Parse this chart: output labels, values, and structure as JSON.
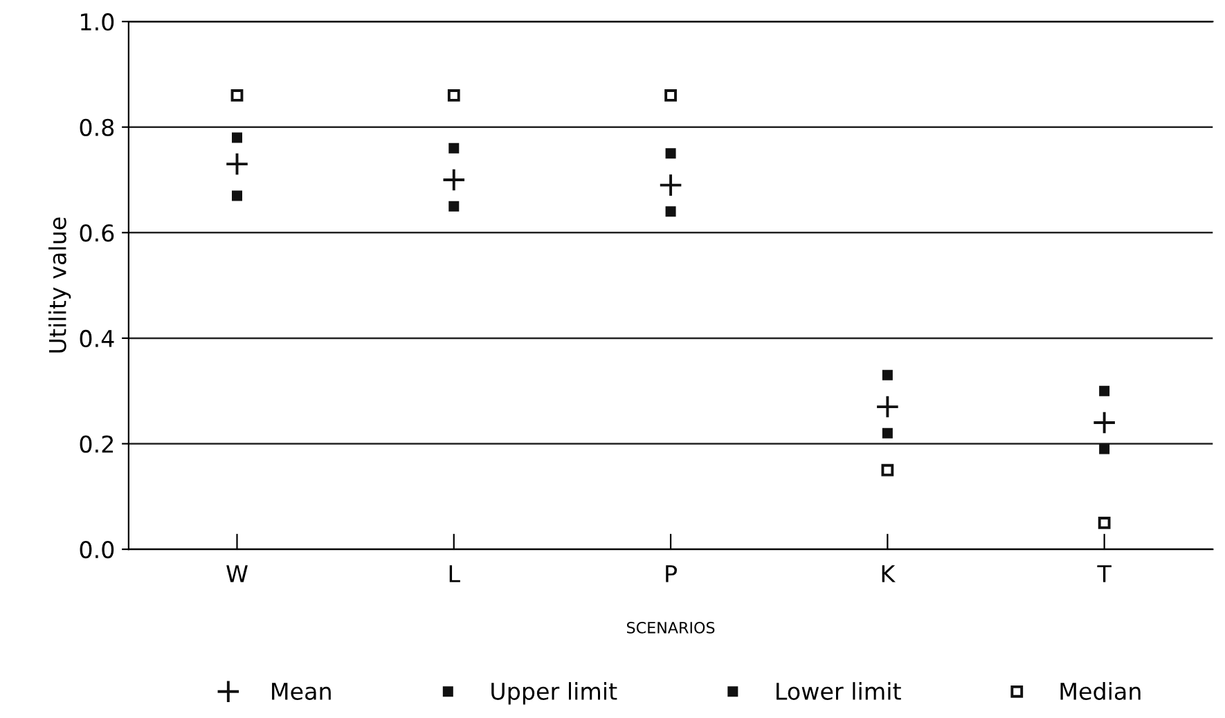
{
  "chart_data": {
    "type": "scatter",
    "ylabel": "Utility value",
    "xlabel": "SCENARIOS",
    "categories": [
      "W",
      "L",
      "P",
      "K",
      "T"
    ],
    "series": [
      {
        "name": "Mean",
        "color": "#111111",
        "marker": "cross",
        "values": [
          0.73,
          0.7,
          0.69,
          0.27,
          0.24
        ]
      },
      {
        "name": "Upper limit",
        "color": "#111111",
        "marker": "square",
        "values": [
          0.78,
          0.76,
          0.75,
          0.33,
          0.3
        ]
      },
      {
        "name": "Lower limit",
        "color": "#111111",
        "marker": "square",
        "values": [
          0.67,
          0.65,
          0.64,
          0.22,
          0.19
        ]
      },
      {
        "name": "Median",
        "color": "#111111",
        "marker": "square",
        "values": [
          0.86,
          0.86,
          0.86,
          0.15,
          0.05
        ]
      }
    ],
    "ylim": [
      0,
      1.0
    ],
    "yticks": [
      {
        "value": 0,
        "label": "0.0"
      },
      0.2,
      0.4,
      0.6,
      0.8,
      {
        "value": 1.0,
        "label": "1.0"
      }
    ],
    "grid": "y",
    "legend": "bottom"
  }
}
